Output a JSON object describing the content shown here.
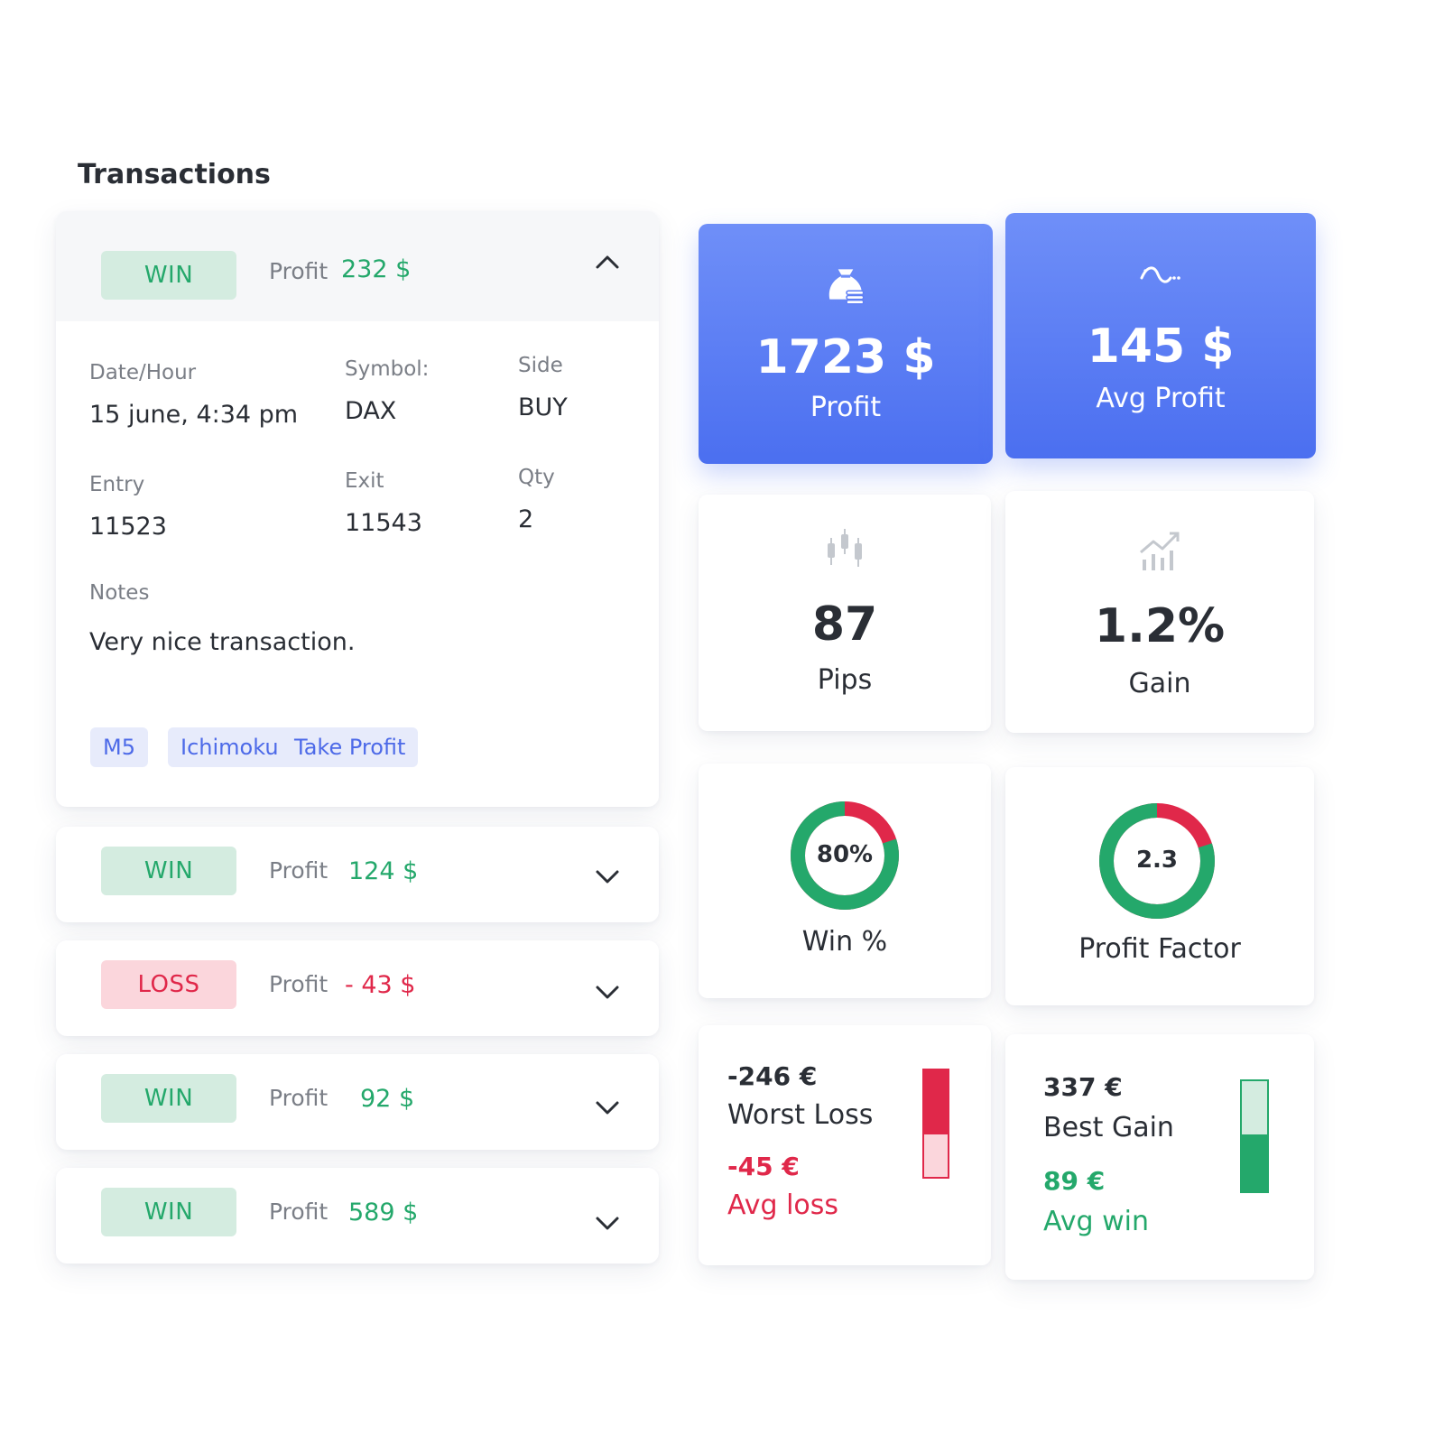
{
  "page": {
    "title": "Transactions"
  },
  "expanded": {
    "result": "WIN",
    "profit_label": "Profit",
    "profit_value": "232 $",
    "labels": {
      "date": "Date/Hour",
      "symbol": "Symbol:",
      "side": "Side",
      "entry": "Entry",
      "exit": "Exit",
      "qty": "Qty",
      "notes": "Notes"
    },
    "values": {
      "date": "15 june, 4:34 pm",
      "symbol": "DAX",
      "side": "BUY",
      "entry": "11523",
      "exit": "11543",
      "qty": "2",
      "notes": "Very nice transaction."
    },
    "tags": [
      "M5",
      "Ichimoku",
      "Take Profit"
    ]
  },
  "transactions": [
    {
      "result": "WIN",
      "profit_label": "Profit",
      "profit_value": "124 $"
    },
    {
      "result": "LOSS",
      "profit_label": "Profit",
      "profit_value": "- 43 $"
    },
    {
      "result": "WIN",
      "profit_label": "Profit",
      "profit_value": "92 $"
    },
    {
      "result": "WIN",
      "profit_label": "Profit",
      "profit_value": "589 $"
    }
  ],
  "stats": {
    "profit": {
      "value": "1723 $",
      "label": "Profit",
      "icon": "money-bag-icon"
    },
    "avg_profit": {
      "value": "145 $",
      "label": "Avg Profit",
      "icon": "wave-trend-icon"
    },
    "pips": {
      "value": "87",
      "label": "Pips",
      "icon": "candlestick-icon"
    },
    "gain": {
      "value": "1.2%",
      "label": "Gain",
      "icon": "growth-chart-icon"
    },
    "win_pct": {
      "value": "80%",
      "label": "Win %",
      "fraction": 0.8
    },
    "profit_factor": {
      "value": "2.3",
      "label": "Profit Factor",
      "fraction": 0.8
    },
    "worst": {
      "value": "-246 €",
      "label": "Worst Loss",
      "avg_value": "-45 €",
      "avg_label": "Avg loss"
    },
    "best": {
      "value": "337 €",
      "label": "Best Gain",
      "avg_value": "89 €",
      "avg_label": "Avg win"
    }
  },
  "colors": {
    "win": "#24a86b",
    "loss": "#e0284a",
    "accent": "#4b6ff0"
  }
}
